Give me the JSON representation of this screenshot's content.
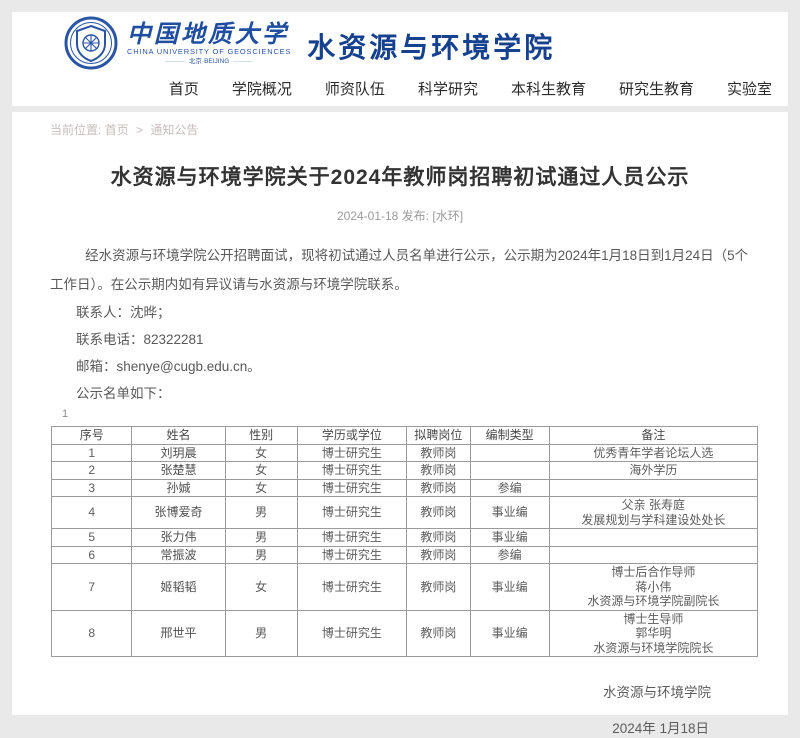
{
  "header": {
    "logo": {
      "cn": "中国地质大学",
      "en": "CHINA UNIVERSITY OF GEOSCIENCES",
      "location": "北京·BEIJING"
    },
    "college_name": "水资源与环境学院",
    "nav": [
      "首页",
      "学院概况",
      "师资队伍",
      "科学研究",
      "本科生教育",
      "研究生教育",
      "实验室"
    ]
  },
  "breadcrumb": {
    "label": "当前位置:",
    "home": "首页",
    "separator": ">",
    "current": "通知公告"
  },
  "article": {
    "title": "水资源与环境学院关于2024年教师岗招聘初试通过人员公示",
    "meta": "2024-01-18 发布: [水环]",
    "paragraph": "经水资源与环境学院公开招聘面试，现将初试通过人员名单进行公示，公示期为2024年1月18日到1月24日（5个工作日）。在公示期内如有异议请与水资源与环境学院联系。",
    "contact_person": "联系人：沈晔；",
    "contact_phone": "联系电话：82322281",
    "contact_email": "邮箱：shenye@cugb.edu.cn。",
    "list_intro": "公示名单如下：",
    "stray_mark": "1"
  },
  "table": {
    "headers": [
      "序号",
      "姓名",
      "性别",
      "学历或学位",
      "拟聘岗位",
      "编制类型",
      "备注"
    ],
    "col_widths": [
      "11.4%",
      "13.2%",
      "10.2%",
      "15.5%",
      "9.0%",
      "11.2%",
      "29.5%"
    ],
    "rows": [
      {
        "no": "1",
        "name": "刘玥晨",
        "gender": "女",
        "degree": "博士研究生",
        "post": "教师岗",
        "type": "",
        "note": [
          "优秀青年学者论坛人选"
        ]
      },
      {
        "no": "2",
        "name": "张楚慧",
        "gender": "女",
        "degree": "博士研究生",
        "post": "教师岗",
        "type": "",
        "note": [
          "海外学历"
        ]
      },
      {
        "no": "3",
        "name": "孙娍",
        "gender": "女",
        "degree": "博士研究生",
        "post": "教师岗",
        "type": "参编",
        "note": []
      },
      {
        "no": "4",
        "name": "张博爱奇",
        "gender": "男",
        "degree": "博士研究生",
        "post": "教师岗",
        "type": "事业编",
        "note": [
          "父亲 张寿庭",
          "发展规划与学科建设处处长"
        ]
      },
      {
        "no": "5",
        "name": "张力伟",
        "gender": "男",
        "degree": "博士研究生",
        "post": "教师岗",
        "type": "事业编",
        "note": []
      },
      {
        "no": "6",
        "name": "常振波",
        "gender": "男",
        "degree": "博士研究生",
        "post": "教师岗",
        "type": "参编",
        "note": []
      },
      {
        "no": "7",
        "name": "姬韬韬",
        "gender": "女",
        "degree": "博士研究生",
        "post": "教师岗",
        "type": "事业编",
        "note": [
          "博士后合作导师",
          "蒋小伟",
          "水资源与环境学院副院长"
        ]
      },
      {
        "no": "8",
        "name": "邢世平",
        "gender": "男",
        "degree": "博士研究生",
        "post": "教师岗",
        "type": "事业编",
        "note": [
          "博士生导师",
          "郭华明",
          "水资源与环境学院院长"
        ]
      }
    ]
  },
  "footer": {
    "signature": "水资源与环境学院",
    "date": "2024年 1月18日"
  },
  "colors": {
    "brand_blue": "#16418f",
    "table_border": "#9b9b9b",
    "page_background": "#e9e9e9"
  }
}
